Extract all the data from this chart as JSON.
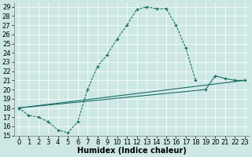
{
  "xlabel": "Humidex (Indice chaleur)",
  "xlim": [
    -0.5,
    23.5
  ],
  "ylim": [
    15,
    29.5
  ],
  "xticks": [
    0,
    1,
    2,
    3,
    4,
    5,
    6,
    7,
    8,
    9,
    10,
    11,
    12,
    13,
    14,
    15,
    16,
    17,
    18,
    19,
    20,
    21,
    22,
    23
  ],
  "yticks": [
    15,
    16,
    17,
    18,
    19,
    20,
    21,
    22,
    23,
    24,
    25,
    26,
    27,
    28,
    29
  ],
  "bg_color": "#cde8e4",
  "line_color": "#1a6b65",
  "curve1_x": [
    0,
    1,
    2,
    3,
    4,
    5,
    6,
    7,
    8,
    9,
    10,
    11,
    12,
    13,
    14,
    15,
    16,
    17,
    18
  ],
  "curve1_y": [
    18.0,
    17.2,
    17.0,
    16.5,
    15.6,
    15.3,
    16.5,
    20.0,
    22.5,
    23.8,
    25.5,
    27.0,
    28.7,
    29.0,
    28.8,
    28.8,
    27.0,
    24.5,
    21.0
  ],
  "line2_x": [
    0,
    19,
    20,
    21,
    22,
    23
  ],
  "line2_y": [
    18.0,
    20.0,
    21.5,
    21.2,
    21.0,
    21.0
  ],
  "line3_x": [
    0,
    23
  ],
  "line3_y": [
    18.0,
    21.0
  ],
  "font_size": 6,
  "xlabel_font_size": 7
}
